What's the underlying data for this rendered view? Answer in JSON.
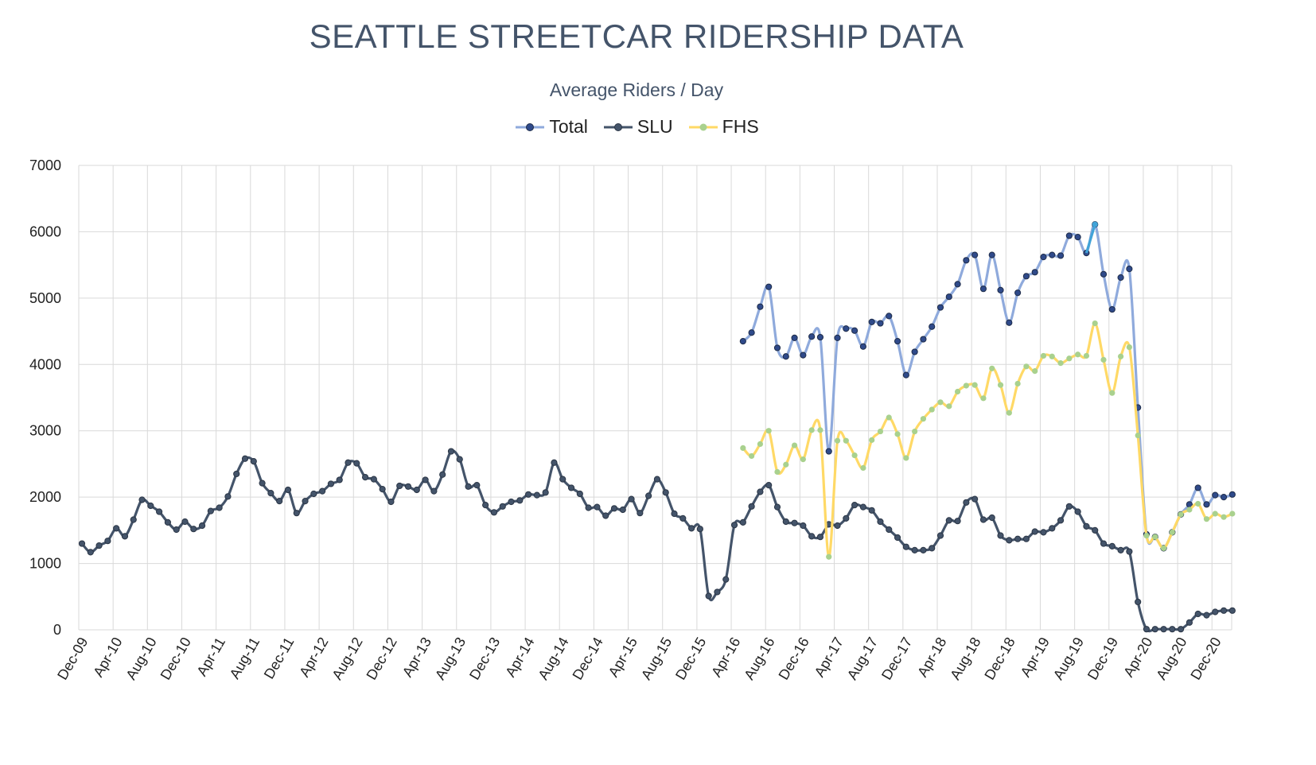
{
  "title": "SEATTLE STREETCAR RIDERSHIP DATA",
  "subtitle": "Average Riders / Day",
  "colors": {
    "total": "#8faadc",
    "total_marker": "#2f4a8a",
    "slu": "#44546a",
    "fhs": "#ffd966",
    "fhs_marker": "#a9d18e",
    "grid": "#d9d9d9",
    "highlight": "#41a3d8"
  },
  "chart_data": {
    "type": "line",
    "title": "SEATTLE STREETCAR RIDERSHIP DATA",
    "subtitle": "Average Riders / Day",
    "ylim": [
      0,
      7000
    ],
    "yticks": [
      0,
      1000,
      2000,
      3000,
      4000,
      5000,
      6000,
      7000
    ],
    "grid": true,
    "legend_position": "top",
    "x_start": "Dec-09",
    "x_tick_labels": [
      "Dec-09",
      "Apr-10",
      "Aug-10",
      "Dec-10",
      "Apr-11",
      "Aug-11",
      "Dec-11",
      "Apr-12",
      "Aug-12",
      "Dec-12",
      "Apr-13",
      "Aug-13",
      "Dec-13",
      "Apr-14",
      "Aug-14",
      "Dec-14",
      "Apr-15",
      "Aug-15",
      "Dec-15",
      "Apr-16",
      "Aug-16",
      "Dec-16",
      "Apr-17",
      "Aug-17",
      "Dec-17",
      "Apr-18",
      "Aug-18",
      "Dec-18",
      "Apr-19",
      "Aug-19",
      "Dec-19",
      "Apr-20",
      "Aug-20",
      "Dec-20"
    ],
    "series": [
      {
        "name": "Total",
        "start": "May-16",
        "values": [
          4350,
          4480,
          4870,
          5170,
          4250,
          4120,
          4400,
          4140,
          4420,
          4410,
          2690,
          4400,
          4540,
          4510,
          4270,
          4640,
          4620,
          4730,
          4350,
          3840,
          4190,
          4380,
          4570,
          4860,
          5020,
          5210,
          5570,
          5650,
          5140,
          5650,
          5120,
          4630,
          5080,
          5330,
          5390,
          5620,
          5650,
          5640,
          5940,
          5920,
          5680,
          6110,
          5360,
          4830,
          5310,
          5440,
          3350,
          1440,
          1400,
          1230,
          1470,
          1740,
          1890,
          2140,
          1890,
          2030,
          2000,
          2040
        ]
      },
      {
        "name": "SLU",
        "start": "Dec-09",
        "values": [
          1300,
          1170,
          1270,
          1340,
          1530,
          1410,
          1660,
          1960,
          1870,
          1780,
          1620,
          1510,
          1630,
          1520,
          1570,
          1790,
          1840,
          2010,
          2350,
          2580,
          2540,
          2210,
          2060,
          1940,
          2110,
          1760,
          1940,
          2050,
          2090,
          2200,
          2260,
          2520,
          2510,
          2300,
          2270,
          2120,
          1930,
          2170,
          2160,
          2110,
          2260,
          2090,
          2340,
          2690,
          2570,
          2160,
          2180,
          1880,
          1770,
          1860,
          1930,
          1950,
          2040,
          2030,
          2070,
          2520,
          2270,
          2140,
          2050,
          1840,
          1850,
          1720,
          1830,
          1810,
          1970,
          1760,
          2020,
          2270,
          2070,
          1750,
          1680,
          1530,
          1520,
          510,
          570,
          760,
          1580,
          1620,
          1860,
          2080,
          2180,
          1850,
          1630,
          1610,
          1570,
          1410,
          1400,
          1590,
          1570,
          1680,
          1880,
          1850,
          1800,
          1630,
          1510,
          1390,
          1250,
          1200,
          1200,
          1230,
          1420,
          1650,
          1640,
          1920,
          1970,
          1660,
          1690,
          1420,
          1350,
          1370,
          1370,
          1480,
          1470,
          1530,
          1650,
          1860,
          1780,
          1560,
          1500,
          1300,
          1260,
          1200,
          1180,
          420,
          10,
          10,
          10,
          10,
          10,
          110,
          240,
          220,
          270,
          290,
          290
        ]
      },
      {
        "name": "FHS",
        "start": "May-16",
        "values": [
          2740,
          2620,
          2800,
          3000,
          2380,
          2490,
          2780,
          2570,
          3010,
          3010,
          1100,
          2850,
          2850,
          2630,
          2440,
          2860,
          2990,
          3200,
          2950,
          2590,
          2990,
          3180,
          3320,
          3430,
          3370,
          3590,
          3680,
          3690,
          3490,
          3940,
          3690,
          3270,
          3710,
          3970,
          3900,
          4130,
          4120,
          4020,
          4090,
          4150,
          4130,
          4620,
          4070,
          3570,
          4120,
          4260,
          2930,
          1420,
          1400,
          1230,
          1470,
          1740,
          1810,
          1900,
          1670,
          1750,
          1700,
          1750
        ]
      }
    ]
  }
}
